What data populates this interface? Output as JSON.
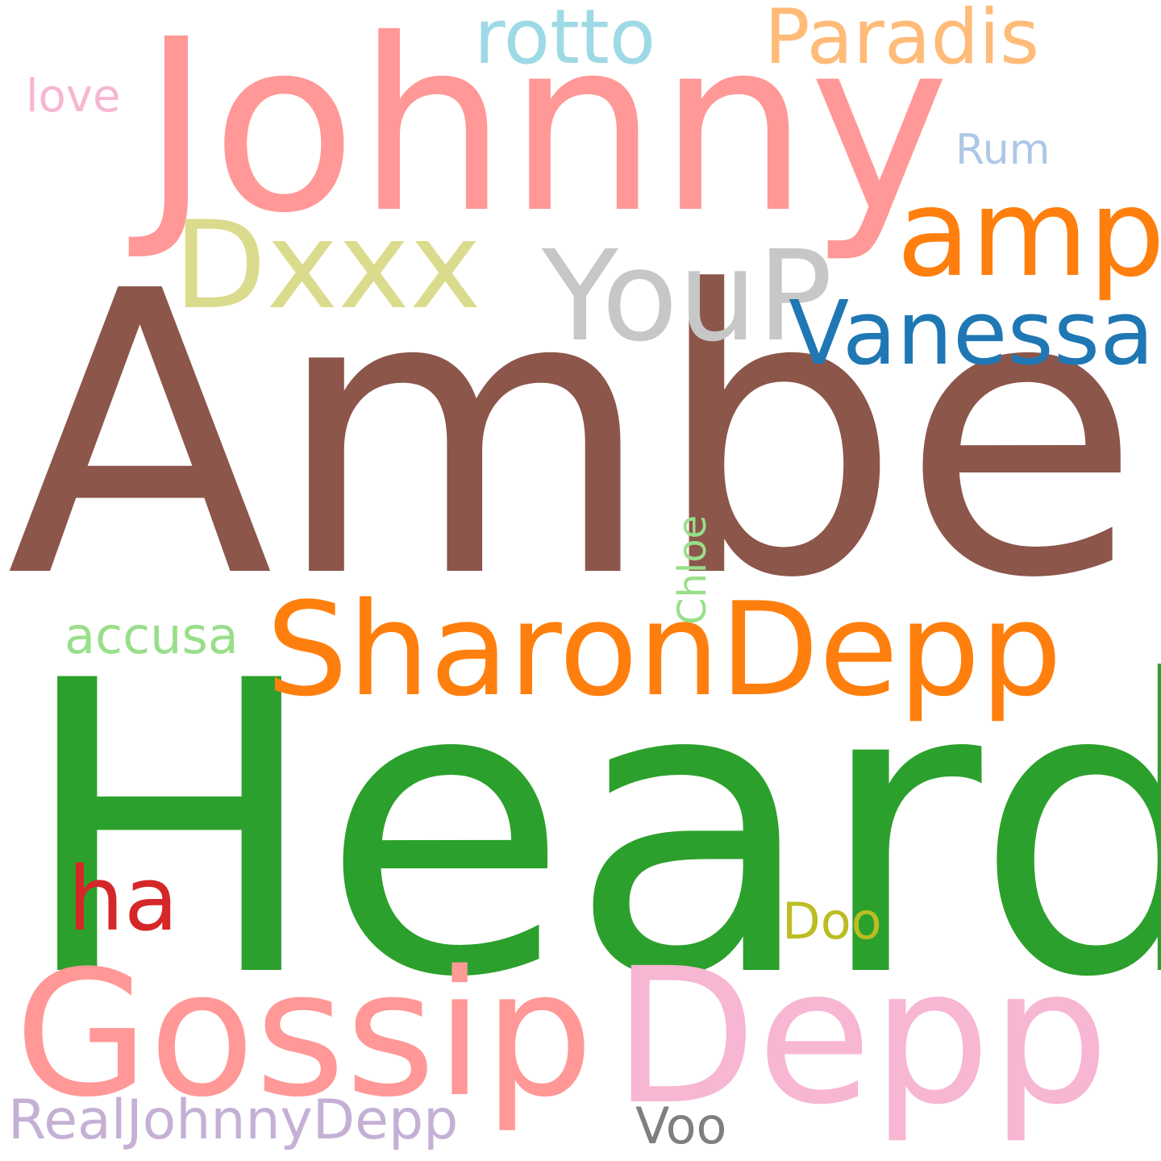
{
  "words": [
    {
      "id": "amber",
      "text": "Amber",
      "color": "#8c564b"
    },
    {
      "id": "heard",
      "text": "Heard",
      "color": "#2ca02c"
    },
    {
      "id": "johnny",
      "text": "Johnny",
      "color": "#ff9896"
    },
    {
      "id": "gossip",
      "text": "Gossip",
      "color": "#ff9896"
    },
    {
      "id": "depp",
      "text": "Depp",
      "color": "#f7b6d2"
    },
    {
      "id": "sharondepp",
      "text": "SharonDepp",
      "color": "#ff7f0e"
    },
    {
      "id": "dxxx",
      "text": "Dxxx",
      "color": "#dbdb8d"
    },
    {
      "id": "youp",
      "text": "YouP",
      "color": "#c7c7c7"
    },
    {
      "id": "amp",
      "text": "amp",
      "color": "#ff7f0e"
    },
    {
      "id": "vanessa",
      "text": "Vanessa",
      "color": "#1f77b4"
    },
    {
      "id": "rotto",
      "text": "rotto",
      "color": "#9edae5"
    },
    {
      "id": "paradis",
      "text": "Paradis",
      "color": "#ffbb78"
    },
    {
      "id": "ha",
      "text": "ha",
      "color": "#d62728"
    },
    {
      "id": "realjohnnydepp",
      "text": "RealJohnnyDepp",
      "color": "#c5b0d5"
    },
    {
      "id": "accusa",
      "text": "accusa",
      "color": "#98df8a"
    },
    {
      "id": "chloe",
      "text": "Chloe",
      "color": "#98df8a"
    },
    {
      "id": "voo",
      "text": "Voo",
      "color": "#7f7f7f"
    },
    {
      "id": "doo",
      "text": "Doo",
      "color": "#bcbd22"
    },
    {
      "id": "rum",
      "text": "Rum",
      "color": "#aec7e8"
    },
    {
      "id": "love",
      "text": "love",
      "color": "#f7b6d2"
    }
  ]
}
